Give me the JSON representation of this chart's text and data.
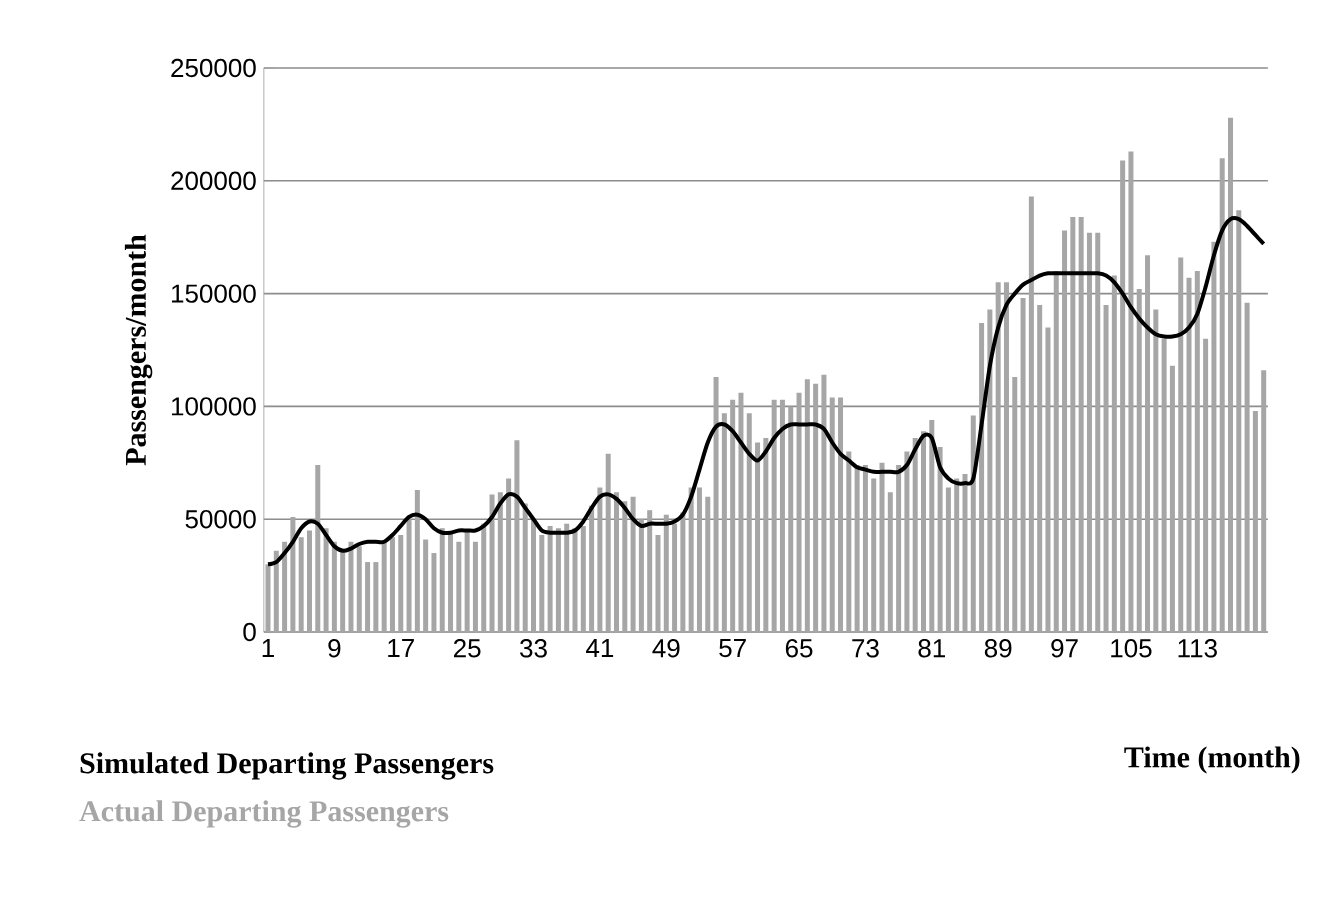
{
  "chart_data": {
    "type": "bar",
    "xlabel": "Time (month)",
    "ylabel": "Passengers/month",
    "categories": [
      "1",
      null,
      null,
      null,
      null,
      null,
      null,
      null,
      "9",
      null,
      null,
      null,
      null,
      null,
      null,
      null,
      "17",
      null,
      null,
      null,
      null,
      null,
      null,
      null,
      "25",
      null,
      null,
      null,
      null,
      null,
      null,
      null,
      "33",
      null,
      null,
      null,
      null,
      null,
      null,
      null,
      "41",
      null,
      null,
      null,
      null,
      null,
      null,
      null,
      "49",
      null,
      null,
      null,
      null,
      null,
      null,
      null,
      "57",
      null,
      null,
      null,
      null,
      null,
      null,
      null,
      "65",
      null,
      null,
      null,
      null,
      null,
      null,
      null,
      "73",
      null,
      null,
      null,
      null,
      null,
      null,
      null,
      "81",
      null,
      null,
      null,
      null,
      null,
      null,
      null,
      "89",
      null,
      null,
      null,
      null,
      null,
      null,
      null,
      "97",
      null,
      null,
      null,
      null,
      null,
      null,
      null,
      "105",
      null,
      null,
      null,
      null,
      null,
      null,
      null,
      "113",
      null,
      null,
      null,
      null,
      null,
      null,
      null,
      null
    ],
    "series": [
      {
        "name": "Simulated Departing Passengers",
        "type": "line",
        "color": "#000000",
        "values": [
          30000,
          31000,
          35000,
          40000,
          46000,
          49000,
          48000,
          43000,
          38000,
          36000,
          37000,
          39000,
          40000,
          40000,
          40000,
          43000,
          47000,
          51000,
          52000,
          50000,
          46000,
          44000,
          44000,
          45000,
          45000,
          45000,
          47000,
          51000,
          57000,
          61000,
          60000,
          55000,
          50000,
          45000,
          44000,
          44000,
          44000,
          45000,
          49000,
          55000,
          60000,
          61000,
          59000,
          55000,
          50000,
          47000,
          48000,
          48000,
          48000,
          49000,
          52000,
          60000,
          72000,
          84000,
          91000,
          92000,
          89000,
          84000,
          79000,
          76000,
          80000,
          86000,
          90000,
          92000,
          92000,
          92000,
          92000,
          90000,
          84000,
          79000,
          76000,
          73000,
          72000,
          71000,
          71000,
          71000,
          71000,
          74000,
          81000,
          87000,
          86000,
          73000,
          68000,
          66000,
          66000,
          68000,
          92000,
          118000,
          135000,
          145000,
          150000,
          154000,
          156000,
          158000,
          159000,
          159000,
          159000,
          159000,
          159000,
          159000,
          159000,
          158000,
          155000,
          150000,
          144000,
          139000,
          135000,
          132000,
          131000,
          131000,
          132000,
          135000,
          141000,
          153000,
          167000,
          178000,
          183000,
          183000,
          180000,
          176000,
          172000
        ]
      },
      {
        "name": "Actual Departing Passengers",
        "color": "#a6a6a6",
        "values": [
          30000,
          36000,
          40000,
          51000,
          42000,
          45000,
          74000,
          46000,
          40000,
          37000,
          40000,
          38000,
          31000,
          31000,
          40000,
          42000,
          43000,
          50000,
          63000,
          41000,
          35000,
          46000,
          44000,
          40000,
          45000,
          40000,
          48000,
          61000,
          62000,
          68000,
          85000,
          57000,
          50000,
          43000,
          47000,
          46000,
          48000,
          46000,
          47000,
          56000,
          64000,
          79000,
          62000,
          58000,
          60000,
          50000,
          54000,
          43000,
          52000,
          48000,
          53000,
          64000,
          64000,
          60000,
          113000,
          97000,
          103000,
          106000,
          97000,
          84000,
          86000,
          103000,
          103000,
          100000,
          106000,
          112000,
          110000,
          114000,
          104000,
          104000,
          80000,
          74000,
          74000,
          68000,
          75000,
          62000,
          74000,
          80000,
          86000,
          89000,
          94000,
          82000,
          64000,
          68000,
          70000,
          96000,
          137000,
          143000,
          155000,
          155000,
          113000,
          148000,
          193000,
          145000,
          135000,
          160000,
          178000,
          184000,
          184000,
          177000,
          177000,
          145000,
          158000,
          209000,
          213000,
          152000,
          167000,
          143000,
          130000,
          118000,
          166000,
          157000,
          160000,
          130000,
          173000,
          210000,
          228000,
          187000,
          146000,
          98000,
          116000
        ]
      }
    ],
    "ylim": [
      0,
      250000
    ],
    "yticks": [
      0,
      50000,
      100000,
      150000,
      200000,
      250000
    ],
    "grid": "y",
    "legend": "bottom left"
  }
}
